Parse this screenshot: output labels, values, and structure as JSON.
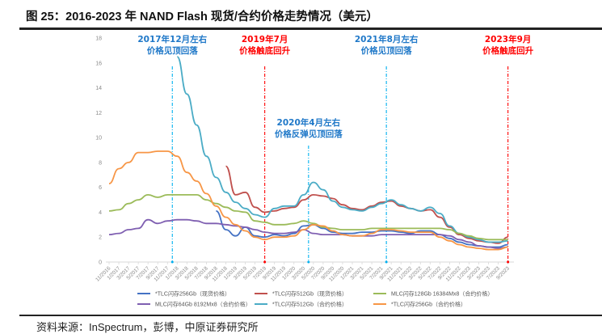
{
  "header": {
    "title": "图 25：2016-2023 年 NAND Flash 现货/合约价格走势情况（美元）"
  },
  "footer": {
    "source": "资料来源：InSpectrum，彭博，中原证券研究所"
  },
  "chart_data": {
    "type": "line",
    "title": "图 25：2016-2023 年 NAND Flash 现货/合约价格走势情况（美元）",
    "xlabel": "",
    "ylabel": "",
    "ylim": [
      0,
      18
    ],
    "yticks": [
      0,
      2,
      4,
      6,
      8,
      10,
      12,
      14,
      16,
      18
    ],
    "grid": false,
    "legend_position": "bottom",
    "x": [
      "11/2016",
      "1/2017",
      "3/2017",
      "5/2017",
      "7/2017",
      "9/2017",
      "11/2017",
      "1/2018",
      "3/2018",
      "5/2018",
      "7/2018",
      "9/2018",
      "11/2018",
      "1/2019",
      "3/2019",
      "5/2019",
      "7/2019",
      "9/2019",
      "11/2019",
      "1/2020",
      "3/2020",
      "5/2020",
      "7/2020",
      "9/2020",
      "11/2020",
      "1/2021",
      "3/2021",
      "5/2021",
      "7/2021",
      "9/2021",
      "11/2021",
      "1/2022",
      "3/2022",
      "5/2022",
      "7/2022",
      "9/2022",
      "11/2022",
      "1/2023",
      "3/2023",
      "5/2023",
      "7/2023",
      "9/2023"
    ],
    "series": [
      {
        "name": "*TLC闪存256Gb（现货价格）",
        "color": "#4472c4",
        "values": [
          null,
          null,
          null,
          null,
          null,
          null,
          null,
          null,
          null,
          null,
          null,
          4.1,
          2.6,
          2.1,
          2.8,
          2.1,
          2.0,
          2.2,
          2.1,
          2.3,
          2.9,
          3.0,
          2.7,
          2.4,
          2.3,
          2.3,
          2.4,
          2.4,
          2.5,
          2.5,
          2.4,
          2.3,
          2.5,
          2.5,
          2.2,
          1.9,
          1.6,
          1.4,
          1.3,
          1.2,
          1.2,
          1.4
        ]
      },
      {
        "name": "*TLC闪存512Gb（现货价格）",
        "color": "#c0504d",
        "values": [
          null,
          null,
          null,
          null,
          null,
          null,
          null,
          null,
          null,
          null,
          null,
          null,
          7.7,
          5.4,
          5.6,
          4.4,
          4.0,
          4.1,
          4.3,
          4.4,
          5.0,
          5.4,
          5.3,
          5.1,
          4.6,
          4.3,
          4.2,
          4.5,
          4.8,
          4.9,
          4.5,
          4.3,
          4.1,
          4.2,
          3.6,
          2.8,
          2.2,
          1.9,
          1.7,
          1.6,
          1.5,
          2.0
        ]
      },
      {
        "name": "MLC闪存64Gb 8192Mx8（合约价格）",
        "color": "#7f5fb1",
        "values": [
          2.2,
          2.3,
          2.6,
          2.7,
          3.4,
          3.1,
          3.3,
          3.4,
          3.4,
          3.3,
          3.1,
          3.1,
          3.0,
          2.9,
          2.8,
          2.6,
          2.4,
          2.3,
          2.3,
          2.4,
          2.6,
          2.3,
          2.2,
          2.2,
          2.2,
          2.1,
          2.1,
          2.1,
          2.2,
          2.2,
          2.2,
          2.2,
          2.2,
          2.2,
          2.2,
          2.1,
          1.8,
          1.6,
          1.3,
          1.2,
          1.1,
          1.2
        ]
      },
      {
        "name": "*TLC闪存512Gb（合约价格）",
        "color": "#4bacc6",
        "values": [
          null,
          null,
          null,
          null,
          null,
          null,
          null,
          16.5,
          13.5,
          11.0,
          8.5,
          6.8,
          5.6,
          4.8,
          4.3,
          3.8,
          3.6,
          4.3,
          4.5,
          4.5,
          5.4,
          6.4,
          5.8,
          4.9,
          4.4,
          4.2,
          4.1,
          4.4,
          4.7,
          5.0,
          4.6,
          4.3,
          4.1,
          4.4,
          3.9,
          2.9,
          2.3,
          2.0,
          1.8,
          1.6,
          1.6,
          1.7
        ]
      },
      {
        "name": "MLC闪存128Gb 16384Mx8（合约价格）",
        "color": "#9bbb59",
        "values": [
          4.1,
          4.2,
          4.7,
          5.0,
          5.4,
          5.2,
          5.4,
          5.4,
          5.4,
          5.4,
          5.0,
          4.7,
          4.4,
          4.1,
          4.0,
          3.3,
          3.2,
          3.0,
          3.0,
          3.1,
          3.3,
          3.1,
          2.8,
          2.7,
          2.6,
          2.6,
          2.6,
          2.7,
          2.7,
          2.7,
          2.7,
          2.7,
          2.7,
          2.7,
          2.7,
          2.6,
          2.3,
          2.1,
          1.9,
          1.8,
          1.8,
          1.8
        ]
      },
      {
        "name": "*TLC闪存256Gb（合约价格）",
        "color": "#f79646",
        "values": [
          6.3,
          7.5,
          8.0,
          8.8,
          8.8,
          8.9,
          8.9,
          8.5,
          7.2,
          6.5,
          5.5,
          4.5,
          3.6,
          3.0,
          2.5,
          2.0,
          1.8,
          2.0,
          2.0,
          2.1,
          2.6,
          3.0,
          2.9,
          2.5,
          2.2,
          2.1,
          2.1,
          2.3,
          2.6,
          2.6,
          2.5,
          2.4,
          2.4,
          2.4,
          2.0,
          1.7,
          1.4,
          1.2,
          1.1,
          1.0,
          1.0,
          1.2
        ]
      }
    ],
    "annotations": [
      {
        "x": "12/2017",
        "line1": "2017年12月左右",
        "line2": "价格见顶回落",
        "color": "#1f78c8",
        "line_color": "#00b0f0"
      },
      {
        "x": "7/2019",
        "line1": "2019年7月",
        "line2": "价格触底回升",
        "color": "#ff0000",
        "line_color": "#ff0000"
      },
      {
        "x": "4/2020",
        "line1": "2020年4月左右",
        "line2": "价格反弹见顶回落",
        "color": "#1f78c8",
        "line_color": "#00b0f0"
      },
      {
        "x": "8/2021",
        "line1": "2021年8月左右",
        "line2": "价格见顶回落",
        "color": "#1f78c8",
        "line_color": "#00b0f0"
      },
      {
        "x": "9/2023",
        "line1": "2023年9月",
        "line2": "价格触底回升",
        "color": "#ff0000",
        "line_color": "#ff0000"
      }
    ]
  }
}
